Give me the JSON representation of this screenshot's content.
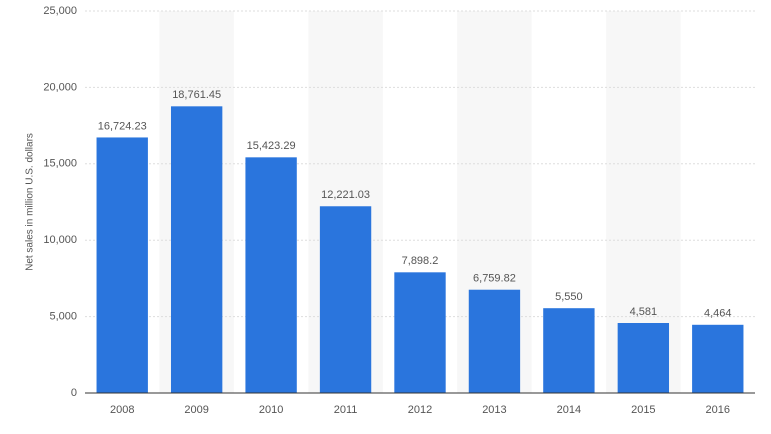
{
  "chart_data": {
    "type": "bar",
    "y_axis_label": "Net sales in million U.S. dollars",
    "categories": [
      "2008",
      "2009",
      "2010",
      "2011",
      "2012",
      "2013",
      "2014",
      "2015",
      "2016"
    ],
    "values": [
      16724.23,
      18761.45,
      15423.29,
      12221.03,
      7898.2,
      6759.82,
      5550,
      4581,
      4464
    ],
    "value_labels": [
      "16,724.23",
      "18,761.45",
      "15,423.29",
      "12,221.03",
      "7,898.2",
      "6,759.82",
      "5,550",
      "4,581",
      "4,464"
    ],
    "color": "#2a75dd",
    "ylim": [
      0,
      25000
    ],
    "yticks": [
      0,
      {
        "value": 5000,
        "label": "5,000"
      },
      {
        "value": 10000,
        "label": "10,000"
      },
      {
        "value": 15000,
        "label": "15,000"
      },
      {
        "value": 20000,
        "label": "20,000"
      },
      {
        "value": 25000,
        "label": "25,000"
      }
    ],
    "grid": true
  }
}
